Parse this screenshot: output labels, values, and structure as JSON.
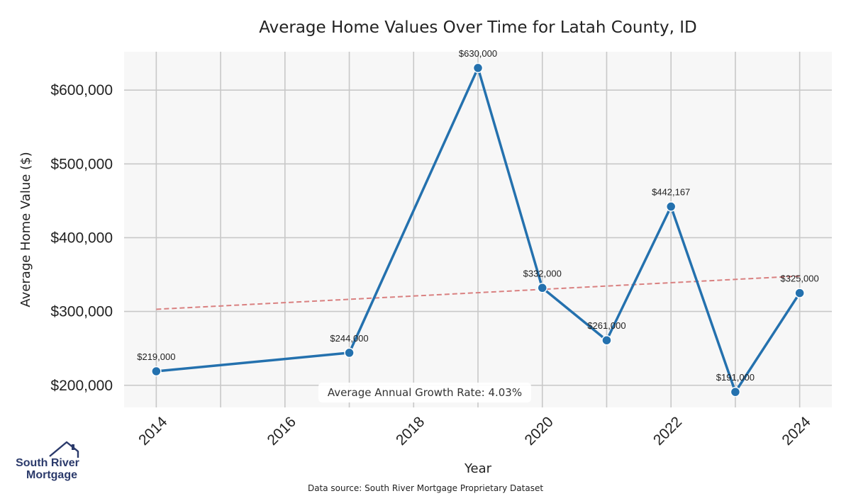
{
  "chart_data": {
    "type": "line",
    "title": "Average Home Values Over Time for Latah County, ID",
    "xlabel": "Year",
    "ylabel": "Average Home Value ($)",
    "xlim": [
      2013.5,
      2024.5
    ],
    "ylim": [
      170000,
      652000
    ],
    "x_ticks": [
      2014,
      2016,
      2018,
      2020,
      2022,
      2024
    ],
    "y_ticks": [
      {
        "value": 200000,
        "label": "$200,000"
      },
      {
        "value": 300000,
        "label": "$300,000"
      },
      {
        "value": 400000,
        "label": "$400,000"
      },
      {
        "value": 500000,
        "label": "$500,000"
      },
      {
        "value": 600000,
        "label": "$600,000"
      }
    ],
    "grid": true,
    "series": [
      {
        "color": "#2471ae",
        "points": [
          {
            "x": 2014,
            "y": 219000,
            "label": "$219,000"
          },
          {
            "x": 2017,
            "y": 244000,
            "label": "$244,000"
          },
          {
            "x": 2019,
            "y": 630000,
            "label": "$630,000"
          },
          {
            "x": 2020,
            "y": 332000,
            "label": "$332,000"
          },
          {
            "x": 2021,
            "y": 261000,
            "label": "$261,000"
          },
          {
            "x": 2022,
            "y": 442167,
            "label": "$442,167"
          },
          {
            "x": 2023,
            "y": 191000,
            "label": "$191,000"
          },
          {
            "x": 2024,
            "y": 325000,
            "label": "$325,000"
          }
        ]
      }
    ],
    "trendline": {
      "color": "#d98080",
      "start": {
        "x": 2014,
        "y": 303000
      },
      "end": {
        "x": 2024,
        "y": 348000
      }
    },
    "annotation": "Average Annual Growth Rate: 4.03%",
    "source": "Data source: South River Mortgage Proprietary Dataset"
  },
  "logo": {
    "line1": "South River",
    "line2": "Mortgage",
    "color": "#2b3a6b"
  }
}
